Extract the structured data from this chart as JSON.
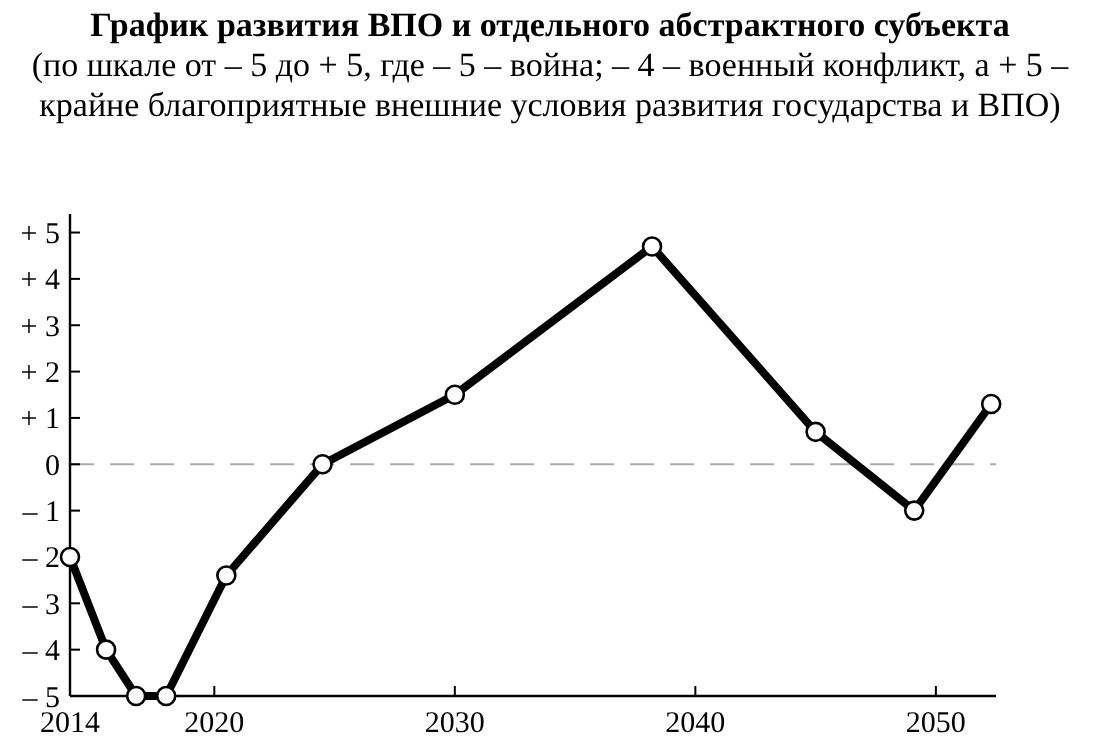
{
  "chart_data": {
    "type": "line",
    "title": "График развития ВПО и отдельного абстрактного субъекта",
    "subtitle": "(по шкале от – 5 до + 5, где – 5 – война; – 4 – военный конфликт, а + 5 – крайне благоприятные внешние условия развития государства и ВПО)",
    "x": [
      2014,
      2015.5,
      2016.75,
      2018,
      2020.5,
      2024.5,
      2030,
      2038.2,
      2045,
      2049.1,
      2052.3
    ],
    "series": [
      {
        "color": "#000000",
        "values": [
          -2,
          -4,
          -5,
          -5,
          -2.4,
          0,
          1.5,
          4.7,
          0.7,
          -1,
          1.3
        ]
      }
    ],
    "xlim": [
      2014,
      2052.5
    ],
    "xticks": [
      2014,
      2020,
      2030,
      2040,
      2050
    ],
    "ylim": [
      -5,
      5.4
    ],
    "yticks": [
      {
        "value": -5,
        "label": "– 5"
      },
      {
        "value": -4,
        "label": "– 4"
      },
      {
        "value": -3,
        "label": "– 3"
      },
      {
        "value": -2,
        "label": "– 2"
      },
      {
        "value": -1,
        "label": "– 1"
      },
      0,
      {
        "value": 1,
        "label": "+ 1"
      },
      {
        "value": 2,
        "label": "+ 2"
      },
      {
        "value": 3,
        "label": "+ 3"
      },
      {
        "value": 4,
        "label": "+ 4"
      },
      {
        "value": 5,
        "label": "+ 5"
      }
    ],
    "ref_lines": [
      {
        "axis": "y",
        "value": 0,
        "color": "#aaaaaa",
        "line_style": "dashed"
      }
    ],
    "marker": "circle",
    "line_style": "solid",
    "grid": false
  }
}
